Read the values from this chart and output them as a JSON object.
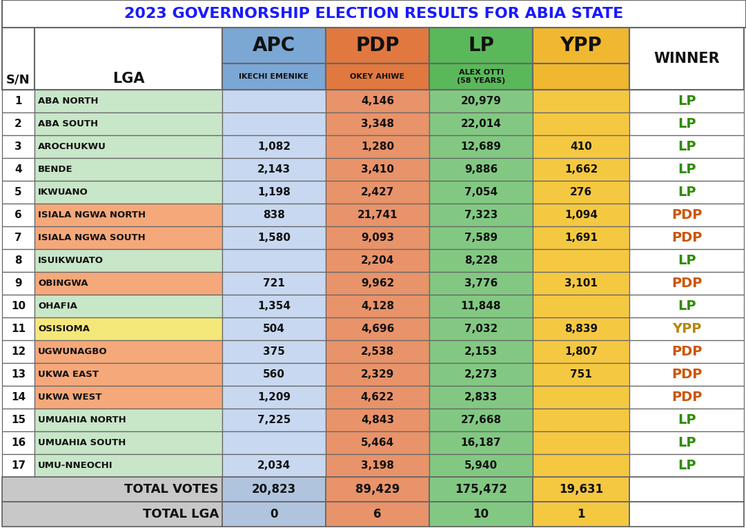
{
  "title": "2023 GOVERNORSHIP ELECTION RESULTS FOR ABIA STATE",
  "title_color": "#1a1aff",
  "candidate_names": [
    "IKECHI EMENIKE",
    "OKEY AHIWE",
    "ALEX OTTI\n(58 YEARS)",
    ""
  ],
  "rows": [
    {
      "sn": 1,
      "lga": "ABA NORTH",
      "apc": "",
      "pdp": "4,146",
      "lp": "20,979",
      "ypp": "",
      "winner": "LP",
      "row_color": "#c8e6c8"
    },
    {
      "sn": 2,
      "lga": "ABA SOUTH",
      "apc": "",
      "pdp": "3,348",
      "lp": "22,014",
      "ypp": "",
      "winner": "LP",
      "row_color": "#c8e6c8"
    },
    {
      "sn": 3,
      "lga": "AROCHUKWU",
      "apc": "1,082",
      "pdp": "1,280",
      "lp": "12,689",
      "ypp": "410",
      "winner": "LP",
      "row_color": "#c8e6c8"
    },
    {
      "sn": 4,
      "lga": "BENDE",
      "apc": "2,143",
      "pdp": "3,410",
      "lp": "9,886",
      "ypp": "1,662",
      "winner": "LP",
      "row_color": "#c8e6c8"
    },
    {
      "sn": 5,
      "lga": "IKWUANO",
      "apc": "1,198",
      "pdp": "2,427",
      "lp": "7,054",
      "ypp": "276",
      "winner": "LP",
      "row_color": "#c8e6c8"
    },
    {
      "sn": 6,
      "lga": "ISIALA NGWA NORTH",
      "apc": "838",
      "pdp": "21,741",
      "lp": "7,323",
      "ypp": "1,094",
      "winner": "PDP",
      "row_color": "#f5a87a"
    },
    {
      "sn": 7,
      "lga": "ISIALA NGWA SOUTH",
      "apc": "1,580",
      "pdp": "9,093",
      "lp": "7,589",
      "ypp": "1,691",
      "winner": "PDP",
      "row_color": "#f5a87a"
    },
    {
      "sn": 8,
      "lga": "ISUIKWUATO",
      "apc": "",
      "pdp": "2,204",
      "lp": "8,228",
      "ypp": "",
      "winner": "LP",
      "row_color": "#c8e6c8"
    },
    {
      "sn": 9,
      "lga": "OBINGWA",
      "apc": "721",
      "pdp": "9,962",
      "lp": "3,776",
      "ypp": "3,101",
      "winner": "PDP",
      "row_color": "#f5a87a"
    },
    {
      "sn": 10,
      "lga": "OHAFIA",
      "apc": "1,354",
      "pdp": "4,128",
      "lp": "11,848",
      "ypp": "",
      "winner": "LP",
      "row_color": "#c8e6c8"
    },
    {
      "sn": 11,
      "lga": "OSISIOMA",
      "apc": "504",
      "pdp": "4,696",
      "lp": "7,032",
      "ypp": "8,839",
      "winner": "YPP",
      "row_color": "#f5e87a"
    },
    {
      "sn": 12,
      "lga": "UGWUNAGBO",
      "apc": "375",
      "pdp": "2,538",
      "lp": "2,153",
      "ypp": "1,807",
      "winner": "PDP",
      "row_color": "#f5a87a"
    },
    {
      "sn": 13,
      "lga": "UKWA EAST",
      "apc": "560",
      "pdp": "2,329",
      "lp": "2,273",
      "ypp": "751",
      "winner": "PDP",
      "row_color": "#f5a87a"
    },
    {
      "sn": 14,
      "lga": "UKWA WEST",
      "apc": "1,209",
      "pdp": "4,622",
      "lp": "2,833",
      "ypp": "",
      "winner": "PDP",
      "row_color": "#f5a87a"
    },
    {
      "sn": 15,
      "lga": "UMUAHIA NORTH",
      "apc": "7,225",
      "pdp": "4,843",
      "lp": "27,668",
      "ypp": "",
      "winner": "LP",
      "row_color": "#c8e6c8"
    },
    {
      "sn": 16,
      "lga": "UMUAHIA SOUTH",
      "apc": "",
      "pdp": "5,464",
      "lp": "16,187",
      "ypp": "",
      "winner": "LP",
      "row_color": "#c8e6c8"
    },
    {
      "sn": 17,
      "lga": "UMU-NNEOCHI",
      "apc": "2,034",
      "pdp": "3,198",
      "lp": "5,940",
      "ypp": "",
      "winner": "LP",
      "row_color": "#c8e6c8"
    }
  ],
  "total_votes": {
    "apc": "20,823",
    "pdp": "89,429",
    "lp": "175,472",
    "ypp": "19,631"
  },
  "total_lga": {
    "apc": "0",
    "pdp": "6",
    "lp": "10",
    "ypp": "1"
  },
  "apc_col_bg": "#b0c4de",
  "pdp_col_bg": "#e8936a",
  "lp_col_bg": "#82c882",
  "ypp_col_bg": "#f5c842",
  "apc_header_bg": "#7ba7d4",
  "pdp_header_bg": "#e07840",
  "lp_header_bg": "#5ab85a",
  "ypp_header_bg": "#f0b830",
  "winner_colors": {
    "LP": "#2e8b00",
    "PDP": "#cc5500",
    "YPP": "#b8860b"
  },
  "total_row_bg": "#c8c8c8",
  "border_color": "#666666",
  "apc_data_bg": "#c8d8f0"
}
